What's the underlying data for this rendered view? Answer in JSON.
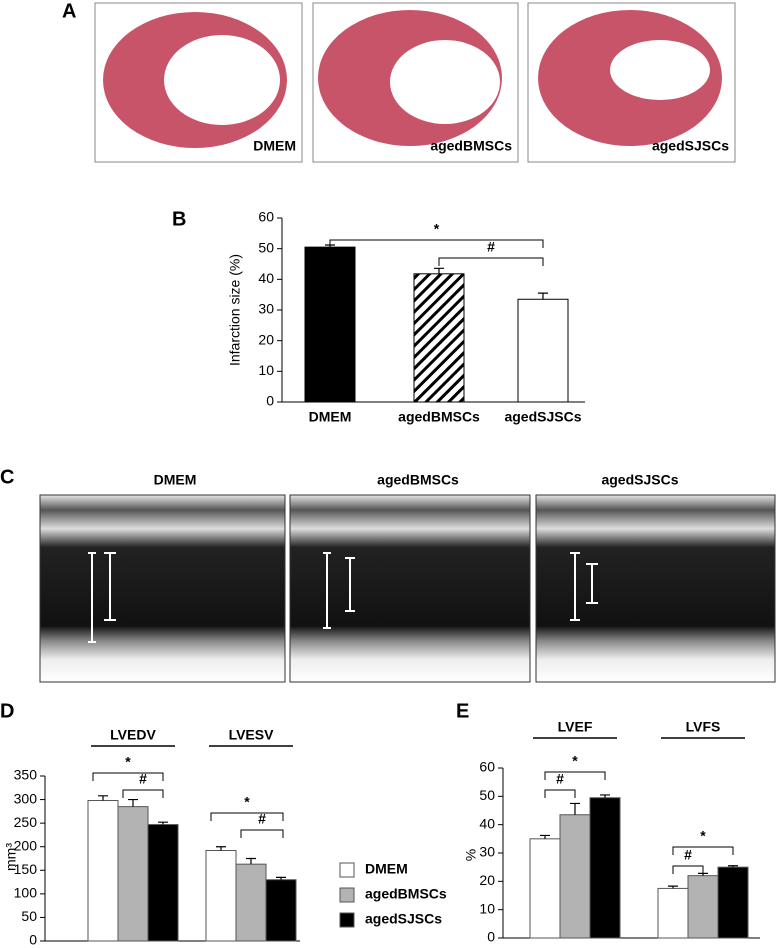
{
  "panel_labels": [
    "A",
    "B",
    "C",
    "D",
    "E"
  ],
  "panel_a": {
    "captions": [
      "DMEM",
      "agedBMSCs",
      "agedSJSCs"
    ]
  },
  "panel_c": {
    "titles": [
      "DMEM",
      "agedBMSCs",
      "agedSJSCs"
    ]
  },
  "chart_data": [
    {
      "type": "bar",
      "y_label": "Infarction size (%)",
      "categories": [
        "DMEM",
        "agedBMSCs",
        "agedSJSCs"
      ],
      "values": [
        50.5,
        41.8,
        33.5
      ],
      "errors": [
        0.7,
        1.8,
        2.0
      ],
      "colors": [
        "#000000",
        "#ffffff",
        "#ffffff"
      ],
      "hatched": [
        false,
        true,
        false
      ],
      "ylim": [
        0,
        60
      ],
      "yticks": [
        0,
        10,
        20,
        30,
        40,
        50,
        60
      ],
      "annotations": [
        "*",
        "#"
      ]
    },
    {
      "type": "bar",
      "y_label": "mm³",
      "categories": [
        "LVEDV",
        "LVESV"
      ],
      "series": [
        {
          "name": "DMEM",
          "color": "#ffffff",
          "values": [
            298,
            192
          ],
          "errors": [
            10,
            8
          ]
        },
        {
          "name": "agedBMSCs",
          "color": "#b3b3b3",
          "values": [
            285,
            163
          ],
          "errors": [
            15,
            12
          ]
        },
        {
          "name": "agedSJSCs",
          "color": "#000000",
          "values": [
            247,
            130
          ],
          "errors": [
            5,
            5
          ]
        }
      ],
      "ylim": [
        0,
        350
      ],
      "yticks": [
        0,
        50,
        100,
        150,
        200,
        250,
        300,
        350
      ],
      "legend": true,
      "annotations": [
        "*",
        "#",
        "*",
        "#"
      ]
    },
    {
      "type": "bar",
      "y_label": "%",
      "categories": [
        "LVEF",
        "LVFS"
      ],
      "series": [
        {
          "color": "#ffffff",
          "values": [
            35,
            17.5
          ],
          "errors": [
            1.2,
            0.8
          ]
        },
        {
          "color": "#b3b3b3",
          "values": [
            43.5,
            22
          ],
          "errors": [
            4,
            0.8
          ]
        },
        {
          "color": "#000000",
          "values": [
            49.5,
            25
          ],
          "errors": [
            1,
            0.5
          ]
        }
      ],
      "ylim": [
        0,
        60
      ],
      "yticks": [
        0,
        10,
        20,
        30,
        40,
        50,
        60
      ],
      "legend": false,
      "annotations": [
        "*",
        "#",
        "*",
        "#"
      ]
    }
  ]
}
